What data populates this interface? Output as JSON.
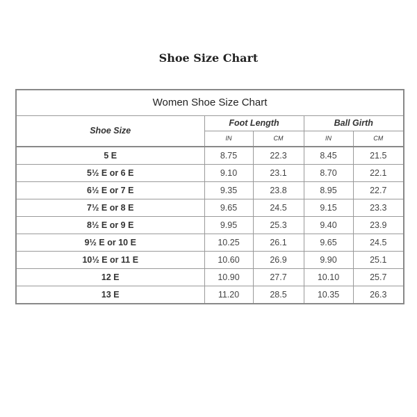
{
  "page_title": "Shoe Size Chart",
  "table": {
    "caption": "Women Shoe Size Chart",
    "headers": {
      "shoe_size": "Shoe Size",
      "foot_length": "Foot Length",
      "ball_girth": "Ball Girth",
      "in": "IN",
      "cm": "CM"
    },
    "rows": [
      [
        "5 E",
        "8.75",
        "22.3",
        "8.45",
        "21.5"
      ],
      [
        "5½ E or 6 E",
        "9.10",
        "23.1",
        "8.70",
        "22.1"
      ],
      [
        "6½ E or 7 E",
        "9.35",
        "23.8",
        "8.95",
        "22.7"
      ],
      [
        "7½ E or 8 E",
        "9.65",
        "24.5",
        "9.15",
        "23.3"
      ],
      [
        "8½ E or 9 E",
        "9.95",
        "25.3",
        "9.40",
        "23.9"
      ],
      [
        "9½ E or 10 E",
        "10.25",
        "26.1",
        "9.65",
        "24.5"
      ],
      [
        "10½ E or 11 E",
        "10.60",
        "26.9",
        "9.90",
        "25.1"
      ],
      [
        "12 E",
        "10.90",
        "27.7",
        "10.10",
        "25.7"
      ],
      [
        "13 E",
        "11.20",
        "28.5",
        "10.35",
        "26.3"
      ]
    ]
  }
}
